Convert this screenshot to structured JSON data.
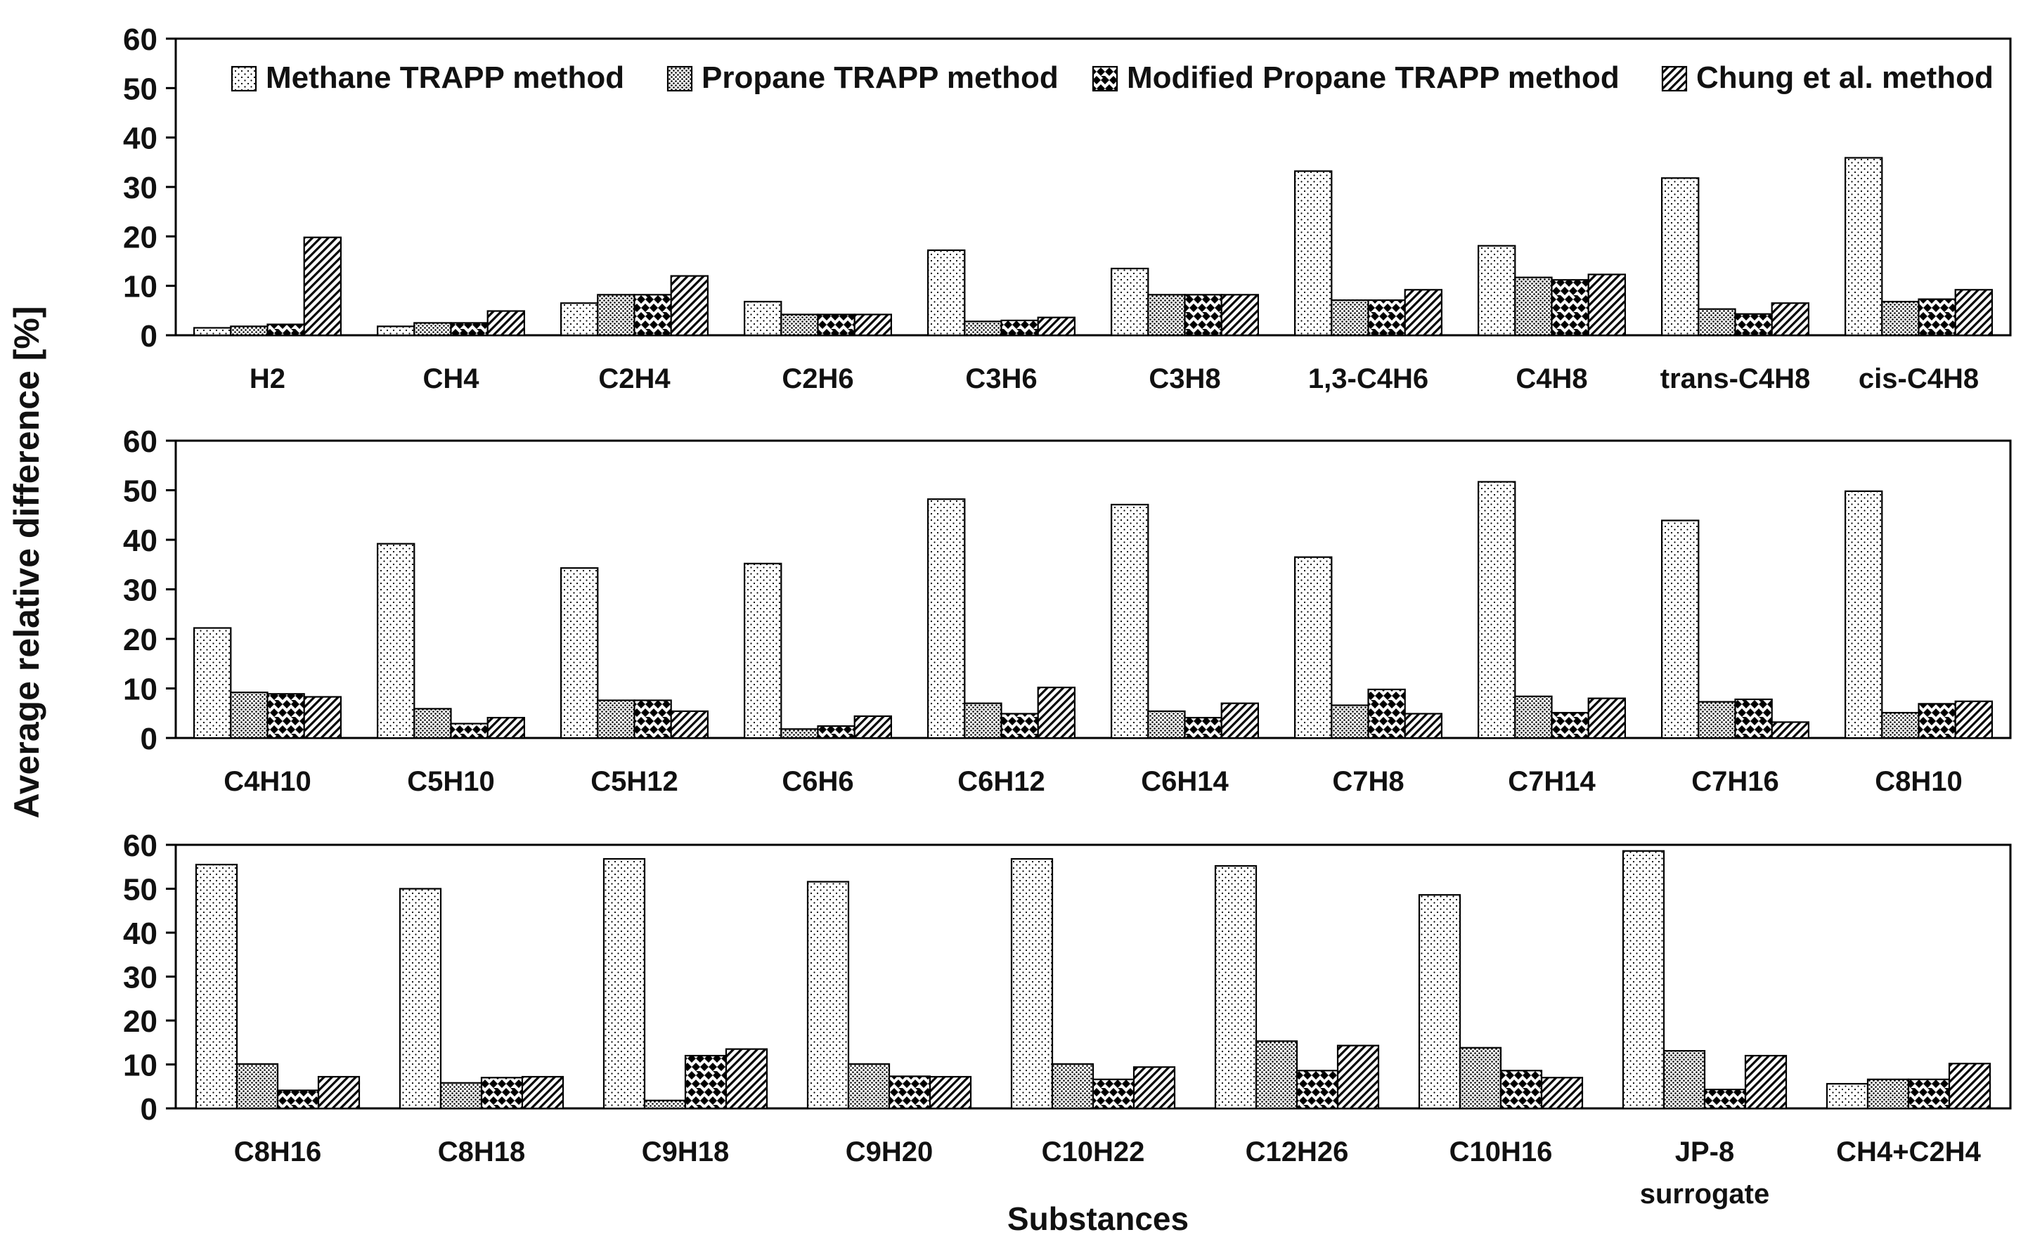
{
  "figure": {
    "ylabel": "Average relative difference [%]",
    "xlabel": "Substances",
    "colors": {
      "axis": "#000000",
      "pattern": "#000000",
      "background": "#ffffff"
    }
  },
  "chart_data": [
    {
      "type": "bar",
      "title": "",
      "xlabel": "",
      "ylabel": "Average relative difference [%]",
      "ylim": [
        0,
        60
      ],
      "yticks": [
        "0",
        "10",
        "20",
        "30",
        "40",
        "50",
        "60"
      ],
      "grid": false,
      "legend": "top-right",
      "categories": [
        [
          "H2"
        ],
        [
          "CH4"
        ],
        [
          "C2H4"
        ],
        [
          "C2H6"
        ],
        [
          "C3H6"
        ],
        [
          "C3H8"
        ],
        [
          "1,3-C4H6"
        ],
        [
          "C4H8"
        ],
        [
          "trans-C4H8"
        ],
        [
          "cis-C4H8"
        ]
      ],
      "series": [
        {
          "name": "Methane TRAPP method",
          "pattern": "sparse-dots",
          "values": [
            1.5,
            1.8,
            6.5,
            6.8,
            17.2,
            13.5,
            33.2,
            18.1,
            31.8,
            35.9
          ]
        },
        {
          "name": "Propane TRAPP method",
          "pattern": "dense-dots",
          "values": [
            1.8,
            2.5,
            8.2,
            4.2,
            2.8,
            8.2,
            7.1,
            11.7,
            5.3,
            6.8
          ]
        },
        {
          "name": "Modified Propane TRAPP method",
          "pattern": "checker",
          "values": [
            2.2,
            2.5,
            8.2,
            4.2,
            3.0,
            8.2,
            7.1,
            11.2,
            4.3,
            7.3
          ]
        },
        {
          "name": "Chung et al. method",
          "pattern": "diagonal",
          "values": [
            19.8,
            4.9,
            12.0,
            4.2,
            3.6,
            8.2,
            9.2,
            12.3,
            6.5,
            9.2
          ]
        }
      ]
    },
    {
      "type": "bar",
      "title": "",
      "xlabel": "",
      "ylabel": "Average relative difference [%]",
      "ylim": [
        0,
        60
      ],
      "yticks": [
        "0",
        "10",
        "20",
        "30",
        "40",
        "50",
        "60"
      ],
      "grid": false,
      "categories": [
        [
          "C4H10"
        ],
        [
          "C5H10"
        ],
        [
          "C5H12"
        ],
        [
          "C6H6"
        ],
        [
          "C6H12"
        ],
        [
          "C6H14"
        ],
        [
          "C7H8"
        ],
        [
          "C7H14"
        ],
        [
          "C7H16"
        ],
        [
          "C8H10"
        ]
      ],
      "series": [
        {
          "name": "Methane TRAPP method",
          "pattern": "sparse-dots",
          "values": [
            22.2,
            39.2,
            34.3,
            35.2,
            48.2,
            47.1,
            36.5,
            51.7,
            43.9,
            49.8
          ]
        },
        {
          "name": "Propane TRAPP method",
          "pattern": "dense-dots",
          "values": [
            9.2,
            5.9,
            7.6,
            1.8,
            7.0,
            5.4,
            6.6,
            8.4,
            7.3,
            5.1
          ]
        },
        {
          "name": "Modified Propane TRAPP method",
          "pattern": "checker",
          "values": [
            8.9,
            2.9,
            7.6,
            2.4,
            4.9,
            4.1,
            9.8,
            5.1,
            7.8,
            6.9
          ]
        },
        {
          "name": "Chung et al. method",
          "pattern": "diagonal",
          "values": [
            8.3,
            4.1,
            5.4,
            4.4,
            10.2,
            7.0,
            4.9,
            8.0,
            3.2,
            7.4
          ]
        }
      ]
    },
    {
      "type": "bar",
      "title": "",
      "xlabel": "Substances",
      "ylabel": "Average relative difference [%]",
      "ylim": [
        0,
        60
      ],
      "yticks": [
        "0",
        "10",
        "20",
        "30",
        "40",
        "50",
        "60"
      ],
      "grid": false,
      "categories": [
        [
          "C8H16"
        ],
        [
          "C8H18"
        ],
        [
          "C9H18"
        ],
        [
          "C9H20"
        ],
        [
          "C10H22"
        ],
        [
          "C12H26"
        ],
        [
          "C10H16"
        ],
        [
          "JP-8",
          "surrogate"
        ],
        [
          "CH4+C2H4"
        ]
      ],
      "series": [
        {
          "name": "Methane TRAPP method",
          "pattern": "sparse-dots",
          "values": [
            55.5,
            50.0,
            56.8,
            51.6,
            56.8,
            55.2,
            48.6,
            58.6,
            5.6
          ]
        },
        {
          "name": "Propane TRAPP method",
          "pattern": "dense-dots",
          "values": [
            10.1,
            5.8,
            1.8,
            10.1,
            10.1,
            15.3,
            13.8,
            13.1,
            6.6
          ]
        },
        {
          "name": "Modified Propane TRAPP method",
          "pattern": "checker",
          "values": [
            4.1,
            7.0,
            12.0,
            7.3,
            6.6,
            8.6,
            8.6,
            4.3,
            6.6
          ]
        },
        {
          "name": "Chung et al. method",
          "pattern": "diagonal",
          "values": [
            7.2,
            7.2,
            13.5,
            7.2,
            9.4,
            14.3,
            7.0,
            12.0,
            10.2
          ]
        }
      ]
    }
  ]
}
